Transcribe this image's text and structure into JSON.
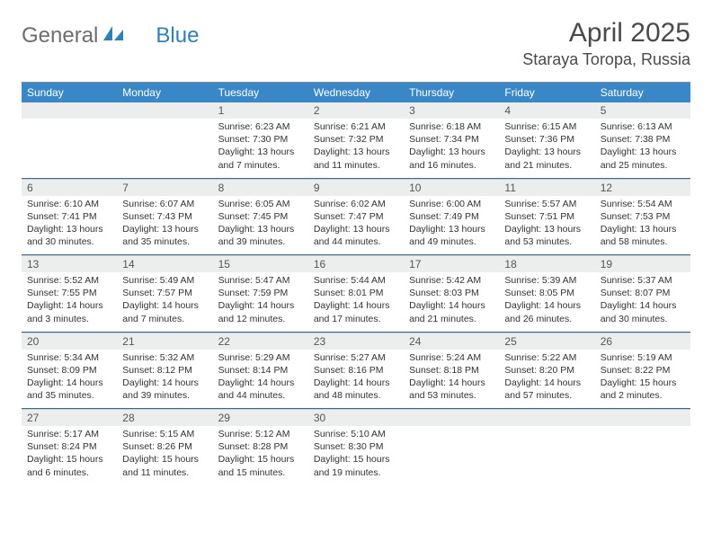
{
  "logo": {
    "text1": "General",
    "text2": "Blue"
  },
  "title": "April 2025",
  "location": "Staraya Toropa, Russia",
  "colors": {
    "header_bg": "#3a87c7",
    "header_fg": "#ffffff",
    "daynum_bg": "#eceeee",
    "text": "#333333",
    "logo_gray": "#6d6d6d",
    "logo_blue": "#2f7fb8",
    "rule": "#3a6a90"
  },
  "day_headers": [
    "Sunday",
    "Monday",
    "Tuesday",
    "Wednesday",
    "Thursday",
    "Friday",
    "Saturday"
  ],
  "weeks": [
    [
      null,
      null,
      {
        "n": "1",
        "sunrise": "6:23 AM",
        "sunset": "7:30 PM",
        "daylight": "13 hours and 7 minutes."
      },
      {
        "n": "2",
        "sunrise": "6:21 AM",
        "sunset": "7:32 PM",
        "daylight": "13 hours and 11 minutes."
      },
      {
        "n": "3",
        "sunrise": "6:18 AM",
        "sunset": "7:34 PM",
        "daylight": "13 hours and 16 minutes."
      },
      {
        "n": "4",
        "sunrise": "6:15 AM",
        "sunset": "7:36 PM",
        "daylight": "13 hours and 21 minutes."
      },
      {
        "n": "5",
        "sunrise": "6:13 AM",
        "sunset": "7:38 PM",
        "daylight": "13 hours and 25 minutes."
      }
    ],
    [
      {
        "n": "6",
        "sunrise": "6:10 AM",
        "sunset": "7:41 PM",
        "daylight": "13 hours and 30 minutes."
      },
      {
        "n": "7",
        "sunrise": "6:07 AM",
        "sunset": "7:43 PM",
        "daylight": "13 hours and 35 minutes."
      },
      {
        "n": "8",
        "sunrise": "6:05 AM",
        "sunset": "7:45 PM",
        "daylight": "13 hours and 39 minutes."
      },
      {
        "n": "9",
        "sunrise": "6:02 AM",
        "sunset": "7:47 PM",
        "daylight": "13 hours and 44 minutes."
      },
      {
        "n": "10",
        "sunrise": "6:00 AM",
        "sunset": "7:49 PM",
        "daylight": "13 hours and 49 minutes."
      },
      {
        "n": "11",
        "sunrise": "5:57 AM",
        "sunset": "7:51 PM",
        "daylight": "13 hours and 53 minutes."
      },
      {
        "n": "12",
        "sunrise": "5:54 AM",
        "sunset": "7:53 PM",
        "daylight": "13 hours and 58 minutes."
      }
    ],
    [
      {
        "n": "13",
        "sunrise": "5:52 AM",
        "sunset": "7:55 PM",
        "daylight": "14 hours and 3 minutes."
      },
      {
        "n": "14",
        "sunrise": "5:49 AM",
        "sunset": "7:57 PM",
        "daylight": "14 hours and 7 minutes."
      },
      {
        "n": "15",
        "sunrise": "5:47 AM",
        "sunset": "7:59 PM",
        "daylight": "14 hours and 12 minutes."
      },
      {
        "n": "16",
        "sunrise": "5:44 AM",
        "sunset": "8:01 PM",
        "daylight": "14 hours and 17 minutes."
      },
      {
        "n": "17",
        "sunrise": "5:42 AM",
        "sunset": "8:03 PM",
        "daylight": "14 hours and 21 minutes."
      },
      {
        "n": "18",
        "sunrise": "5:39 AM",
        "sunset": "8:05 PM",
        "daylight": "14 hours and 26 minutes."
      },
      {
        "n": "19",
        "sunrise": "5:37 AM",
        "sunset": "8:07 PM",
        "daylight": "14 hours and 30 minutes."
      }
    ],
    [
      {
        "n": "20",
        "sunrise": "5:34 AM",
        "sunset": "8:09 PM",
        "daylight": "14 hours and 35 minutes."
      },
      {
        "n": "21",
        "sunrise": "5:32 AM",
        "sunset": "8:12 PM",
        "daylight": "14 hours and 39 minutes."
      },
      {
        "n": "22",
        "sunrise": "5:29 AM",
        "sunset": "8:14 PM",
        "daylight": "14 hours and 44 minutes."
      },
      {
        "n": "23",
        "sunrise": "5:27 AM",
        "sunset": "8:16 PM",
        "daylight": "14 hours and 48 minutes."
      },
      {
        "n": "24",
        "sunrise": "5:24 AM",
        "sunset": "8:18 PM",
        "daylight": "14 hours and 53 minutes."
      },
      {
        "n": "25",
        "sunrise": "5:22 AM",
        "sunset": "8:20 PM",
        "daylight": "14 hours and 57 minutes."
      },
      {
        "n": "26",
        "sunrise": "5:19 AM",
        "sunset": "8:22 PM",
        "daylight": "15 hours and 2 minutes."
      }
    ],
    [
      {
        "n": "27",
        "sunrise": "5:17 AM",
        "sunset": "8:24 PM",
        "daylight": "15 hours and 6 minutes."
      },
      {
        "n": "28",
        "sunrise": "5:15 AM",
        "sunset": "8:26 PM",
        "daylight": "15 hours and 11 minutes."
      },
      {
        "n": "29",
        "sunrise": "5:12 AM",
        "sunset": "8:28 PM",
        "daylight": "15 hours and 15 minutes."
      },
      {
        "n": "30",
        "sunrise": "5:10 AM",
        "sunset": "8:30 PM",
        "daylight": "15 hours and 19 minutes."
      },
      null,
      null,
      null
    ]
  ],
  "labels": {
    "sunrise": "Sunrise:",
    "sunset": "Sunset:",
    "daylight": "Daylight:"
  }
}
